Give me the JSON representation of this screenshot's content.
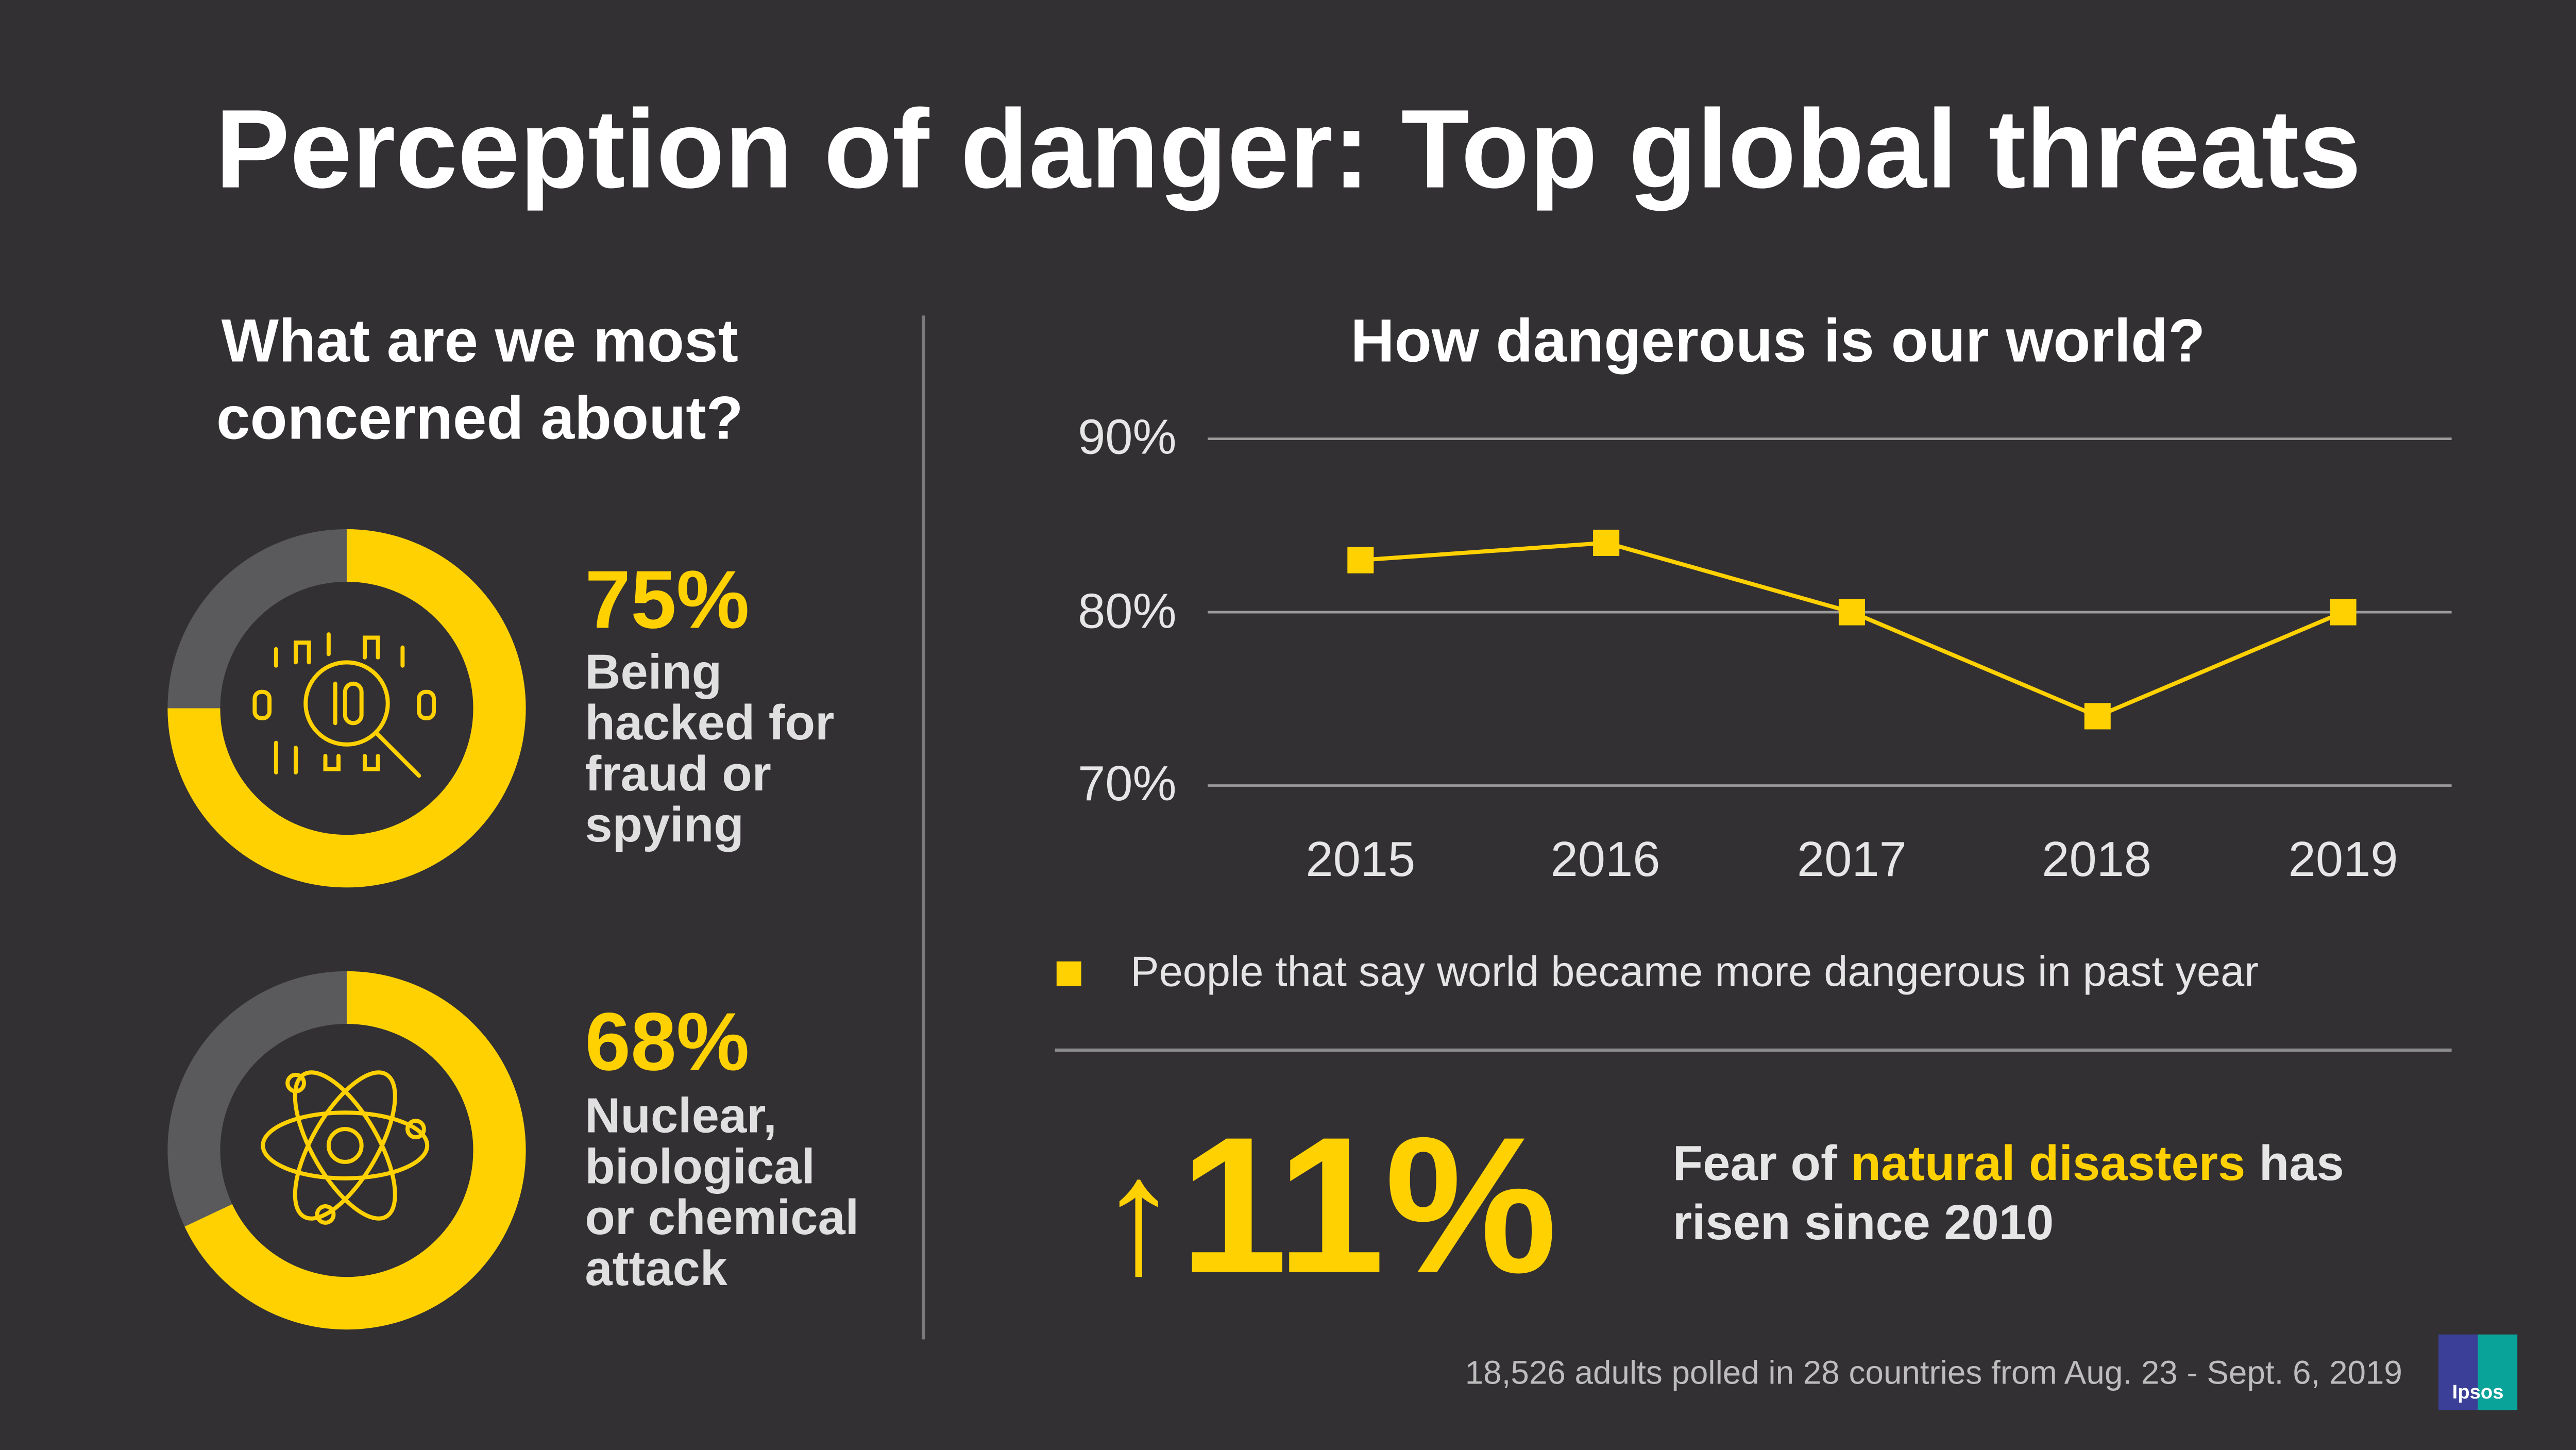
{
  "title": "Perception of danger: Top global threats",
  "left": {
    "heading_line1": "What are we most",
    "heading_line2": "concerned about?",
    "items": [
      {
        "percent": "75%",
        "value": 75,
        "label_lines": [
          "Being",
          "hacked for",
          "fraud or",
          "spying"
        ],
        "icon": "hacking-magnifier-icon"
      },
      {
        "percent": "68%",
        "value": 68,
        "label_lines": [
          "Nuclear,",
          "biological",
          "or chemical",
          "attack"
        ],
        "icon": "atom-icon"
      }
    ]
  },
  "colors": {
    "accent": "#ffd100",
    "background": "#323033",
    "donut_rest": "#5a5a5c"
  },
  "chart_data": {
    "type": "line",
    "title": "How dangerous is our world?",
    "categories": [
      "2015",
      "2016",
      "2017",
      "2018",
      "2019"
    ],
    "series": [
      {
        "name": "People that say world became more dangerous in past year",
        "values": [
          83,
          84,
          80,
          74,
          80
        ]
      }
    ],
    "ylim": [
      70,
      90
    ],
    "yticks": [
      "90%",
      "80%",
      "70%"
    ],
    "ytick_values": [
      90,
      80,
      70
    ],
    "grid": true,
    "legend_position": "bottom"
  },
  "stat": {
    "arrow": "↑",
    "value": "11%",
    "text_before": "Fear of ",
    "highlight": "natural disasters",
    "text_after": " has",
    "line2": "risen since 2010"
  },
  "footer": "18,526 adults polled in 28 countries from Aug. 23 - Sept. 6, 2019",
  "logo": "Ipsos"
}
